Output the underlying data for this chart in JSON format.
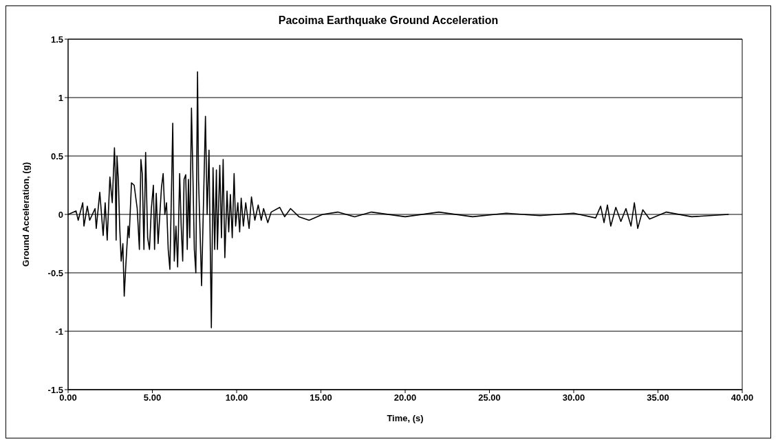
{
  "chart_data": {
    "type": "line",
    "title": "Pacoima Earthquake Ground Acceleration",
    "xlabel": "Time, (s)",
    "ylabel": "Ground Acceleration, (g)",
    "x": [
      0,
      0.47,
      0.6,
      0.87,
      0.94,
      1.14,
      1.28,
      1.6,
      1.67,
      1.88,
      2.08,
      2.2,
      2.32,
      2.48,
      2.62,
      2.75,
      2.8,
      2.85,
      2.9,
      2.98,
      3.06,
      3.15,
      3.25,
      3.33,
      3.42,
      3.56,
      3.62,
      3.76,
      3.92,
      4.1,
      4.23,
      4.32,
      4.4,
      4.5,
      4.6,
      4.72,
      4.83,
      4.94,
      5.06,
      5.13,
      5.23,
      5.34,
      5.54,
      5.64,
      5.74,
      5.84,
      5.94,
      6.04,
      6.12,
      6.21,
      6.3,
      6.4,
      6.5,
      6.62,
      6.71,
      6.8,
      6.88,
      6.98,
      7.07,
      7.14,
      7.22,
      7.32,
      7.41,
      7.49,
      7.58,
      7.68,
      7.74,
      7.92,
      8.05,
      8.15,
      8.25,
      8.36,
      8.5,
      8.6,
      8.7,
      8.8,
      8.86,
      9.0,
      9.1,
      9.2,
      9.3,
      9.43,
      9.53,
      9.63,
      9.74,
      9.85,
      9.94,
      10.07,
      10.18,
      10.27,
      10.4,
      10.54,
      10.74,
      10.88,
      11.08,
      11.28,
      11.46,
      11.6,
      11.85,
      12.05,
      12.56,
      12.85,
      13.2,
      13.7,
      14.3,
      15.1,
      16,
      17,
      18,
      20,
      22,
      24,
      26,
      28,
      30,
      31.3,
      31.6,
      31.8,
      32.0,
      32.2,
      32.5,
      32.8,
      33.1,
      33.4,
      33.6,
      33.8,
      34.1,
      34.5,
      35.5,
      37,
      39.2
    ],
    "series": [
      {
        "color": "#000000",
        "values": [
          0,
          0.03,
          -0.05,
          0.1,
          -0.1,
          0.07,
          -0.05,
          0.05,
          -0.12,
          0.19,
          -0.18,
          0.1,
          -0.22,
          0.32,
          0.1,
          0.57,
          0.35,
          -0.22,
          0.5,
          0.3,
          -0.1,
          -0.4,
          -0.25,
          -0.7,
          -0.45,
          -0.1,
          -0.2,
          0.27,
          0.25,
          0.05,
          -0.3,
          0.47,
          0.35,
          -0.3,
          0.53,
          -0.2,
          -0.3,
          0.05,
          0.25,
          -0.3,
          0.18,
          -0.25,
          0.23,
          0.35,
          0,
          0.1,
          -0.3,
          -0.47,
          0.1,
          0.78,
          -0.4,
          -0.1,
          -0.45,
          0.35,
          -0.1,
          -0.4,
          0.3,
          0.34,
          -0.3,
          0.3,
          -0.2,
          0.91,
          0.3,
          -0.3,
          -0.5,
          1.22,
          0.3,
          -0.61,
          0.2,
          0.84,
          0,
          0.55,
          -0.97,
          0.4,
          -0.3,
          0.38,
          -0.3,
          0.42,
          -0.2,
          0.47,
          -0.37,
          0.2,
          -0.15,
          0.17,
          -0.2,
          0.35,
          -0.1,
          0.1,
          -0.15,
          0.14,
          -0.1,
          0.1,
          -0.12,
          0.15,
          -0.05,
          0.08,
          -0.05,
          0.05,
          -0.07,
          0.02,
          0.06,
          -0.02,
          0.05,
          -0.02,
          -0.05,
          0,
          0.02,
          -0.02,
          0.02,
          -0.02,
          0.02,
          -0.02,
          0.01,
          -0.01,
          0.01,
          -0.03,
          0.07,
          -0.07,
          0.08,
          -0.1,
          0.06,
          -0.06,
          0.05,
          -0.1,
          0.1,
          -0.12,
          0.04,
          -0.04,
          0.02,
          -0.02,
          0
        ]
      }
    ],
    "xlim": [
      0,
      40
    ],
    "xticks": [
      {
        "value": 0,
        "label": "0.00"
      },
      {
        "value": 5,
        "label": "5.00"
      },
      {
        "value": 10,
        "label": "10.00"
      },
      {
        "value": 15,
        "label": "15.00"
      },
      {
        "value": 20,
        "label": "20.00"
      },
      {
        "value": 25,
        "label": "25.00"
      },
      {
        "value": 30,
        "label": "30.00"
      },
      {
        "value": 35,
        "label": "35.00"
      },
      {
        "value": 40,
        "label": "40.00"
      }
    ],
    "ylim": [
      -1.5,
      1.5
    ],
    "yticks": [
      -1.5,
      -1,
      -0.5,
      0,
      0.5,
      1,
      1.5
    ],
    "grid": "y",
    "legend": false,
    "marker": "none",
    "line_style": "solid"
  }
}
